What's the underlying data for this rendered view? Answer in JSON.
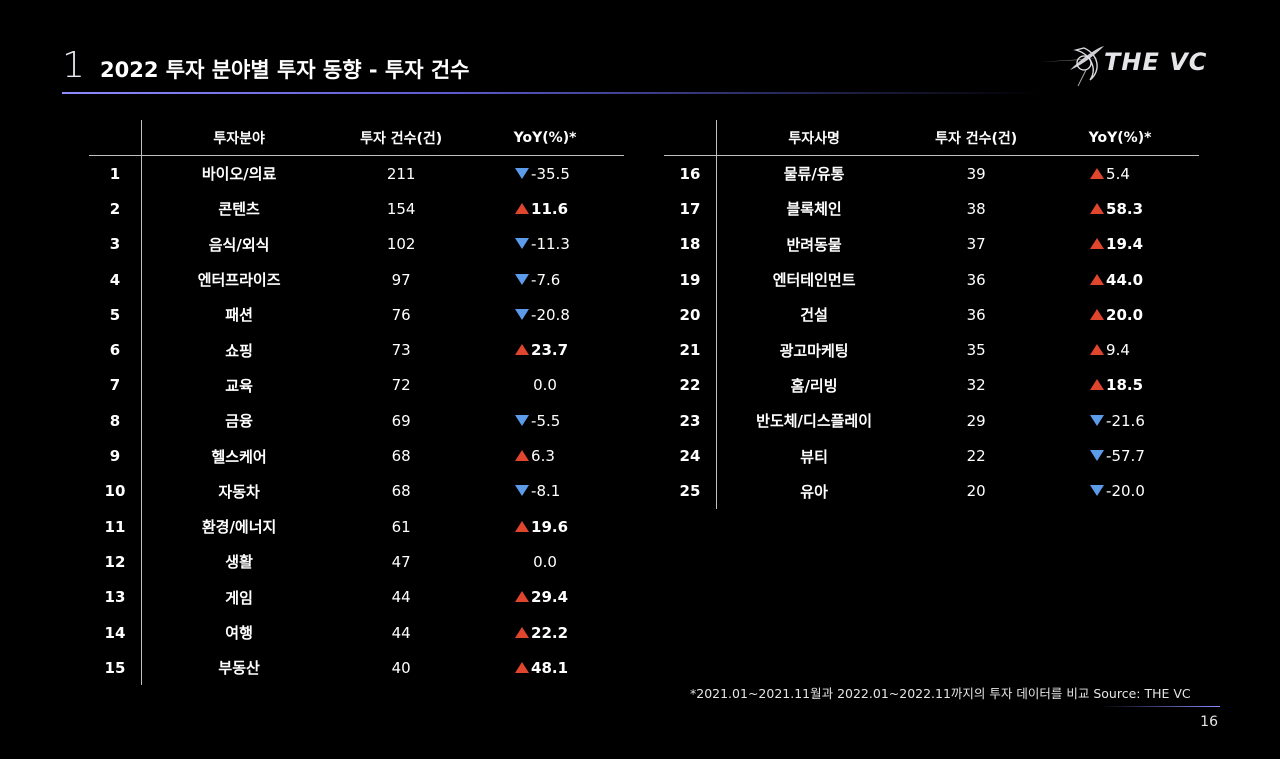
{
  "header": {
    "section_number": "1",
    "title": "2022 투자 분야별 투자 동향 - 투자 건수",
    "logo_text": "THE VC"
  },
  "left_table": {
    "headers": [
      "",
      "투자분야",
      "투자 건수(건)",
      "YoY(%)*"
    ],
    "rows": [
      {
        "rank": "1",
        "field": "바이오/의료",
        "count": "211",
        "yoy": "-35.5",
        "dir": "down"
      },
      {
        "rank": "2",
        "field": "콘텐츠",
        "count": "154",
        "yoy": "11.6",
        "dir": "up"
      },
      {
        "rank": "3",
        "field": "음식/외식",
        "count": "102",
        "yoy": "-11.3",
        "dir": "down"
      },
      {
        "rank": "4",
        "field": "엔터프라이즈",
        "count": "97",
        "yoy": "-7.6",
        "dir": "down"
      },
      {
        "rank": "5",
        "field": "패션",
        "count": "76",
        "yoy": "-20.8",
        "dir": "down"
      },
      {
        "rank": "6",
        "field": "쇼핑",
        "count": "73",
        "yoy": "23.7",
        "dir": "up"
      },
      {
        "rank": "7",
        "field": "교육",
        "count": "72",
        "yoy": "0.0",
        "dir": "flat"
      },
      {
        "rank": "8",
        "field": "금융",
        "count": "69",
        "yoy": "-5.5",
        "dir": "down"
      },
      {
        "rank": "9",
        "field": "헬스케어",
        "count": "68",
        "yoy": "6.3",
        "dir": "up"
      },
      {
        "rank": "10",
        "field": "자동차",
        "count": "68",
        "yoy": "-8.1",
        "dir": "down"
      },
      {
        "rank": "11",
        "field": "환경/에너지",
        "count": "61",
        "yoy": "19.6",
        "dir": "up"
      },
      {
        "rank": "12",
        "field": "생활",
        "count": "47",
        "yoy": "0.0",
        "dir": "flat"
      },
      {
        "rank": "13",
        "field": "게임",
        "count": "44",
        "yoy": "29.4",
        "dir": "up"
      },
      {
        "rank": "14",
        "field": "여행",
        "count": "44",
        "yoy": "22.2",
        "dir": "up"
      },
      {
        "rank": "15",
        "field": "부동산",
        "count": "40",
        "yoy": "48.1",
        "dir": "up"
      }
    ]
  },
  "right_table": {
    "headers": [
      "",
      "투자사명",
      "투자 건수(건)",
      "YoY(%)*"
    ],
    "rows": [
      {
        "rank": "16",
        "field": "물류/유통",
        "count": "39",
        "yoy": "5.4",
        "dir": "up"
      },
      {
        "rank": "17",
        "field": "블록체인",
        "count": "38",
        "yoy": "58.3",
        "dir": "up"
      },
      {
        "rank": "18",
        "field": "반려동물",
        "count": "37",
        "yoy": "19.4",
        "dir": "up"
      },
      {
        "rank": "19",
        "field": "엔터테인먼트",
        "count": "36",
        "yoy": "44.0",
        "dir": "up"
      },
      {
        "rank": "20",
        "field": "건설",
        "count": "36",
        "yoy": "20.0",
        "dir": "up"
      },
      {
        "rank": "21",
        "field": "광고마케팅",
        "count": "35",
        "yoy": "9.4",
        "dir": "up"
      },
      {
        "rank": "22",
        "field": "홈/리빙",
        "count": "32",
        "yoy": "18.5",
        "dir": "up"
      },
      {
        "rank": "23",
        "field": "반도체/디스플레이",
        "count": "29",
        "yoy": "-21.6",
        "dir": "down"
      },
      {
        "rank": "24",
        "field": "뷰티",
        "count": "22",
        "yoy": "-57.7",
        "dir": "down"
      },
      {
        "rank": "25",
        "field": "유아",
        "count": "20",
        "yoy": "-20.0",
        "dir": "down"
      }
    ]
  },
  "footnote": "*2021.01~2021.11월과 2022.01~2022.11까지의 투자 데이터를 비교     Source: THE VC",
  "page_number": "16",
  "colors": {
    "background": "#000000",
    "up": "#e0452e",
    "down": "#5b9bea",
    "accent_rule": "#8a8cff"
  }
}
